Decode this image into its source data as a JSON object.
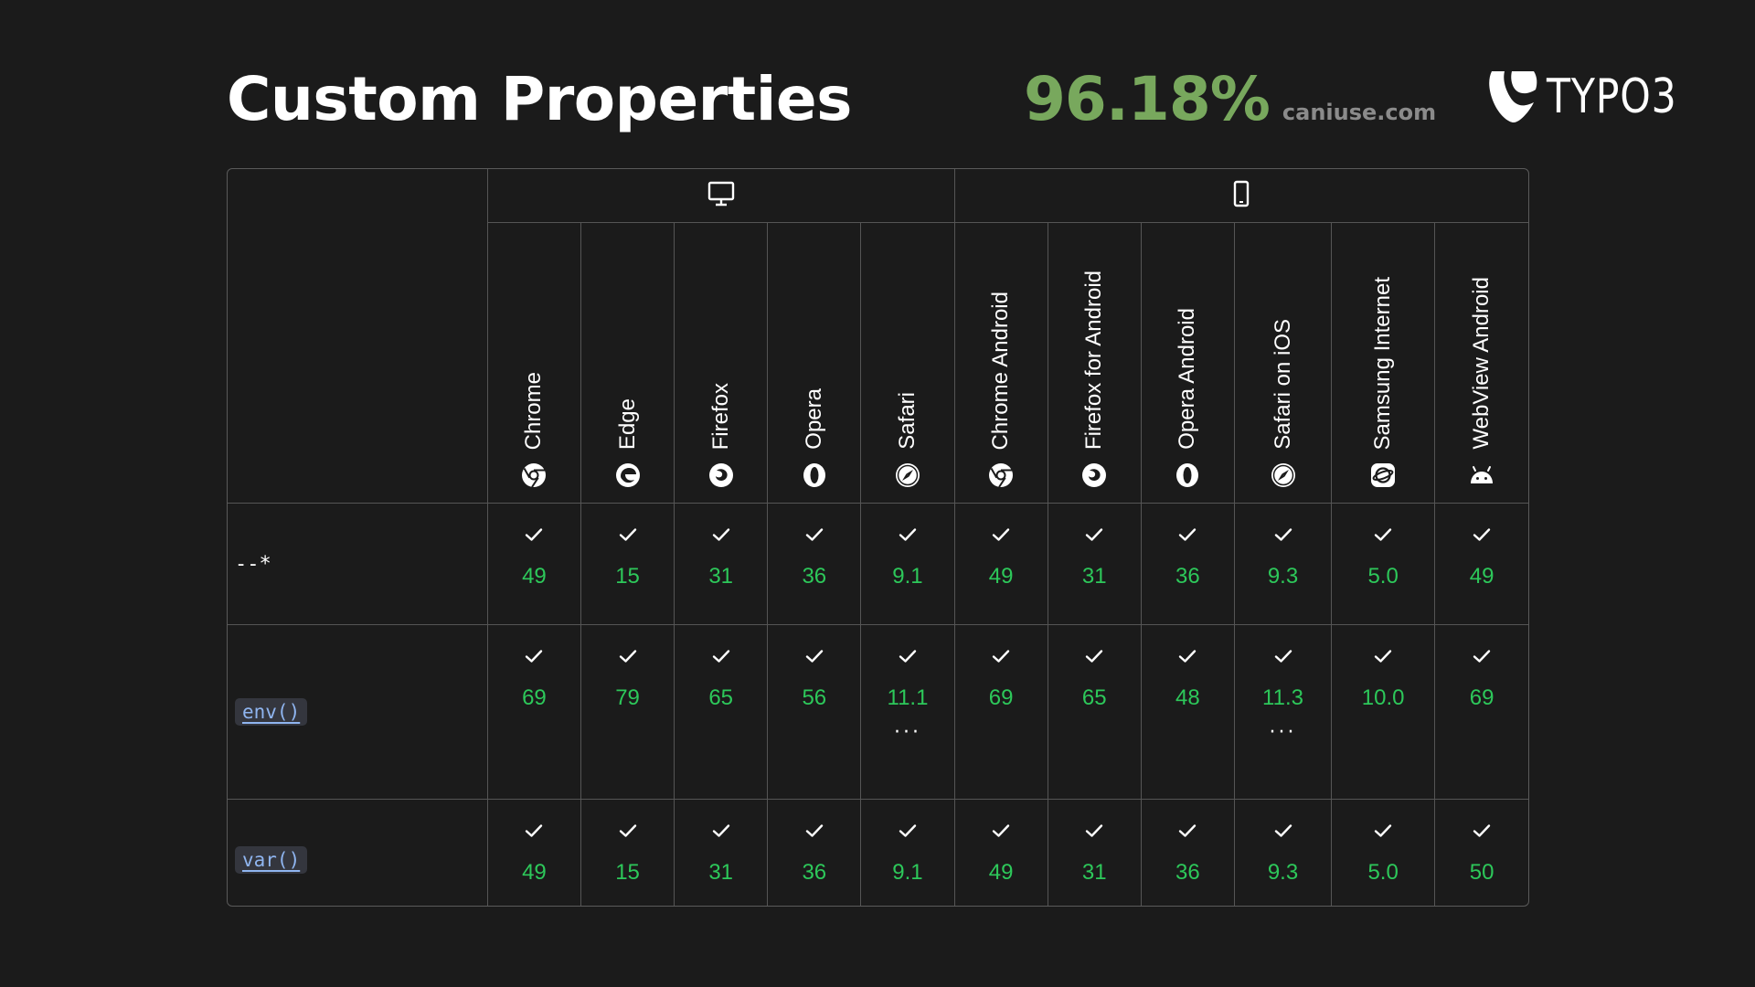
{
  "header": {
    "title": "Custom Properties",
    "support_percent": "96.18%",
    "source": "caniuse.com",
    "logo_text": "TYPO3"
  },
  "groups": [
    {
      "name": "desktop",
      "icon": "monitor-icon"
    },
    {
      "name": "mobile",
      "icon": "phone-icon"
    }
  ],
  "browsers": [
    {
      "name": "Chrome",
      "icon": "chrome-icon"
    },
    {
      "name": "Edge",
      "icon": "edge-icon"
    },
    {
      "name": "Firefox",
      "icon": "firefox-icon"
    },
    {
      "name": "Opera",
      "icon": "opera-icon"
    },
    {
      "name": "Safari",
      "icon": "safari-icon"
    },
    {
      "name": "Chrome Android",
      "icon": "chrome-icon"
    },
    {
      "name": "Firefox for Android",
      "icon": "firefox-icon"
    },
    {
      "name": "Opera Android",
      "icon": "opera-icon"
    },
    {
      "name": "Safari on iOS",
      "icon": "safari-icon"
    },
    {
      "name": "Samsung Internet",
      "icon": "samsung-internet-icon"
    },
    {
      "name": "WebView Android",
      "icon": "android-icon"
    }
  ],
  "features": [
    {
      "name": "--*",
      "code": false,
      "versions": [
        "49",
        "15",
        "31",
        "36",
        "9.1",
        "49",
        "31",
        "36",
        "9.3",
        "5.0",
        "49"
      ],
      "more": [
        false,
        false,
        false,
        false,
        false,
        false,
        false,
        false,
        false,
        false,
        false
      ]
    },
    {
      "name": "env()",
      "code": true,
      "versions": [
        "69",
        "79",
        "65",
        "56",
        "11.1",
        "69",
        "65",
        "48",
        "11.3",
        "10.0",
        "69"
      ],
      "more": [
        false,
        false,
        false,
        false,
        true,
        false,
        false,
        false,
        true,
        false,
        false
      ]
    },
    {
      "name": "var()",
      "code": true,
      "versions": [
        "49",
        "15",
        "31",
        "36",
        "9.1",
        "49",
        "31",
        "36",
        "9.3",
        "5.0",
        "50"
      ],
      "more": [
        false,
        false,
        false,
        false,
        false,
        false,
        false,
        false,
        false,
        false,
        false
      ]
    }
  ],
  "colors": {
    "background": "#1b1b1b",
    "percent": "#78a85d",
    "version": "#2dc85a",
    "code_link": "#8fb5f0"
  }
}
